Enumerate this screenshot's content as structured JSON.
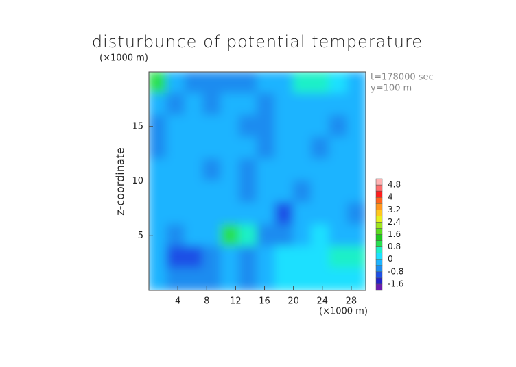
{
  "chart_data": {
    "type": "contour",
    "title": "disturbunce of potential temperature",
    "ylabel": "z-coordinate",
    "xunit": "(×1000 m)",
    "yunit": "(×1000 m)",
    "annotations": [
      "t=178000 sec",
      "y=100 m"
    ],
    "xlim": [
      0,
      30
    ],
    "ylim": [
      0,
      20
    ],
    "xticks": [
      4,
      8,
      12,
      16,
      20,
      24,
      28
    ],
    "yticks": [
      5,
      10,
      15
    ],
    "x": [
      1.25,
      3.75,
      6.25,
      8.75,
      11.25,
      13.75,
      16.25,
      18.75,
      21.25,
      23.75,
      26.25,
      28.75
    ],
    "y": [
      19,
      17,
      15,
      13,
      11,
      9,
      7,
      5,
      3,
      1
    ],
    "z": [
      [
        0.9,
        -0.2,
        -0.6,
        -0.8,
        -0.6,
        -0.5,
        -0.2,
        -0.1,
        0.4,
        0.6,
        0.2,
        -0.3
      ],
      [
        -0.2,
        -0.5,
        -0.3,
        -0.6,
        -0.1,
        -0.3,
        -0.6,
        -0.2,
        -0.2,
        -0.3,
        -0.1,
        -0.2
      ],
      [
        -0.6,
        -0.3,
        -0.1,
        -0.2,
        -0.3,
        -0.5,
        -0.7,
        -0.2,
        -0.3,
        -0.2,
        -0.5,
        -0.3
      ],
      [
        -0.5,
        -0.1,
        -0.2,
        -0.1,
        -0.3,
        -0.2,
        -0.6,
        -0.4,
        -0.2,
        -0.5,
        -0.3,
        -0.2
      ],
      [
        -0.3,
        -0.2,
        -0.1,
        -0.5,
        -0.2,
        -0.6,
        -0.3,
        -0.2,
        -0.3,
        -0.2,
        -0.4,
        -0.1
      ],
      [
        -0.1,
        -0.3,
        -0.2,
        -0.3,
        -0.4,
        -0.7,
        -0.3,
        -0.2,
        -0.7,
        -0.4,
        -0.2,
        -0.3
      ],
      [
        -0.2,
        -0.1,
        -0.2,
        -0.1,
        -0.2,
        -0.1,
        -0.3,
        -0.9,
        -0.2,
        -0.3,
        -0.3,
        -0.5
      ],
      [
        -0.3,
        -0.5,
        -0.3,
        -0.2,
        0.9,
        0.6,
        -0.8,
        -0.5,
        -0.1,
        0.1,
        -0.2,
        -0.3
      ],
      [
        -0.3,
        -1.1,
        -1.0,
        -0.8,
        -0.4,
        -0.6,
        -0.2,
        0.1,
        0.3,
        0.2,
        0.5,
        0.6
      ],
      [
        -0.4,
        -0.7,
        -0.8,
        -0.5,
        -0.3,
        -0.5,
        -0.2,
        0.1,
        0.0,
        0.2,
        0.1,
        0.3
      ]
    ],
    "colorbar": {
      "levels": [
        -2.0,
        -1.6,
        -1.2,
        -0.8,
        -0.4,
        0,
        0.4,
        0.8,
        1.2,
        1.6,
        2.0,
        2.4,
        2.8,
        3.2,
        3.6,
        4.0,
        4.4,
        4.8,
        5.2
      ],
      "colors": [
        "#6a1bb0",
        "#2323c8",
        "#1f50e6",
        "#1e8cf0",
        "#1eb4ff",
        "#1ee0ff",
        "#1ef0c8",
        "#28e050",
        "#1ec81e",
        "#5adc1e",
        "#a0e61e",
        "#e6f01e",
        "#ffc81e",
        "#ff961e",
        "#ff641e",
        "#ff1e1e",
        "#ff6e6e",
        "#ffb4b4"
      ],
      "ticks": [
        -1.6,
        -0.8,
        0,
        0.8,
        1.6,
        2.4,
        3.2,
        4,
        4.8
      ]
    }
  }
}
